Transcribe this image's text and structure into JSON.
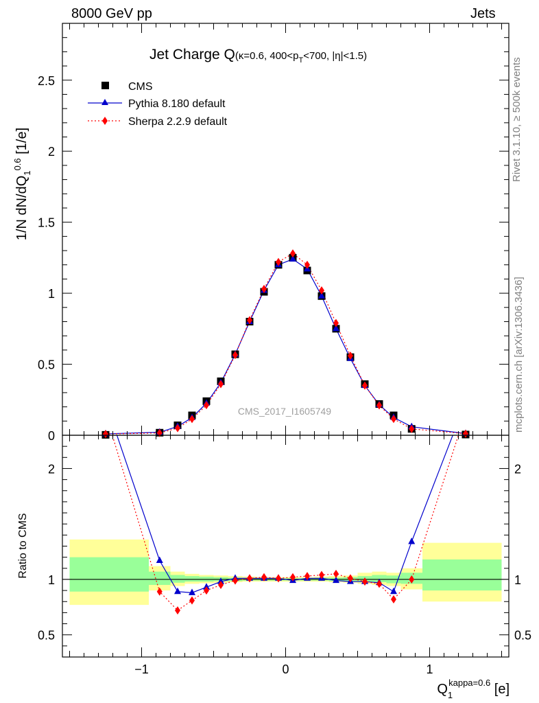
{
  "header": {
    "left": "8000 GeV pp",
    "right": "Jets"
  },
  "side_labels": {
    "rivet": "Rivet 3.1.10, ≥ 500k events",
    "mcplots": "mcplots.cern.ch [arXiv:1306.3436]"
  },
  "watermark": "CMS_2017_I1605749",
  "chart_data": {
    "type": "line",
    "title": "Jet Charge Q",
    "title_sub": "(κ=0.6, 400<p",
    "title_sub_T": "T",
    "title_sub_end": "<700, |η|<1.5)",
    "ylabel_main": "1/N dN/dQ",
    "ylabel_main_sup": "0.6",
    "ylabel_main_sub": "1",
    "ylabel_main_unit": " [1/e]",
    "ylabel_ratio": "Ratio to CMS",
    "xlabel_main": "Q",
    "xlabel_sup": "kappa=0.6",
    "xlabel_sub": "1",
    "xlabel_unit": " [e]",
    "xlim": [
      -1.55,
      1.55
    ],
    "ylim_main": [
      0,
      2.9
    ],
    "ylim_ratio": [
      0.3,
      2.3
    ],
    "xticks": [
      -1,
      0,
      1
    ],
    "xtick_labels": [
      "−1",
      "0",
      "1"
    ],
    "yticks_main": [
      0.5,
      1,
      1.5,
      2,
      2.5
    ],
    "yticks_main_labels": [
      "0.5",
      "1",
      "1.5",
      "2",
      "2.5"
    ],
    "y_zero_label": "0",
    "yticks_ratio": [
      0.5,
      1,
      2
    ],
    "yticks_ratio_labels": [
      "0.5",
      "1",
      "2"
    ],
    "legend_position": "top-left",
    "x": [
      -1.25,
      -0.875,
      -0.75,
      -0.65,
      -0.55,
      -0.45,
      -0.35,
      -0.25,
      -0.15,
      -0.05,
      0.05,
      0.15,
      0.25,
      0.35,
      0.45,
      0.55,
      0.65,
      0.75,
      0.875,
      1.25
    ],
    "series": [
      {
        "name": "CMS",
        "color": "#000000",
        "marker": "square",
        "values": [
          0.003,
          0.018,
          0.07,
          0.14,
          0.24,
          0.38,
          0.57,
          0.8,
          1.01,
          1.2,
          1.25,
          1.16,
          0.98,
          0.75,
          0.55,
          0.36,
          0.22,
          0.14,
          0.045,
          0.005
        ]
      },
      {
        "name": "Pythia 8.180 default",
        "color": "#0000cc",
        "marker": "triangle",
        "dash": "none",
        "values": [
          0.01,
          0.021,
          0.062,
          0.124,
          0.225,
          0.37,
          0.57,
          0.8,
          1.02,
          1.2,
          1.24,
          1.17,
          0.98,
          0.75,
          0.54,
          0.35,
          0.215,
          0.125,
          0.06,
          0.012
        ],
        "ratio": [
          2.6,
          1.17,
          0.89,
          0.88,
          0.93,
          0.98,
          1.01,
          1.01,
          1.01,
          1.01,
          0.99,
          1.01,
          1.01,
          0.99,
          0.98,
          0.98,
          0.97,
          0.89,
          1.34,
          2.6
        ]
      },
      {
        "name": "Sherpa 2.2.9 default",
        "color": "#ff0000",
        "marker": "diamond",
        "dash": "2,3",
        "values": [
          0.009,
          0.016,
          0.05,
          0.114,
          0.212,
          0.36,
          0.565,
          0.81,
          1.03,
          1.22,
          1.28,
          1.2,
          1.02,
          0.79,
          0.56,
          0.35,
          0.21,
          0.115,
          0.045,
          0.011
        ],
        "ratio": [
          2.5,
          0.89,
          0.72,
          0.81,
          0.9,
          0.95,
          0.99,
          1.01,
          1.02,
          1.01,
          1.02,
          1.03,
          1.04,
          1.05,
          1.01,
          0.98,
          0.96,
          0.82,
          1.0,
          2.5
        ]
      }
    ],
    "uncertainty_bands": {
      "colors": {
        "inner": "#99ff99",
        "outer": "#ffff99"
      },
      "bins": [
        {
          "x0": -1.5,
          "x1": -0.95,
          "inner": [
            0.89,
            1.2
          ],
          "outer": [
            0.77,
            1.36
          ]
        },
        {
          "x0": -0.95,
          "x1": -0.8,
          "inner": [
            0.95,
            1.07
          ],
          "outer": [
            0.9,
            1.12
          ]
        },
        {
          "x0": -0.8,
          "x1": -0.7,
          "inner": [
            0.97,
            1.04
          ],
          "outer": [
            0.94,
            1.07
          ]
        },
        {
          "x0": -0.7,
          "x1": -0.6,
          "inner": [
            0.98,
            1.03
          ],
          "outer": [
            0.96,
            1.05
          ]
        },
        {
          "x0": -0.6,
          "x1": -0.5,
          "inner": [
            0.98,
            1.025
          ],
          "outer": [
            0.965,
            1.04
          ]
        },
        {
          "x0": -0.5,
          "x1": -0.4,
          "inner": [
            0.985,
            1.02
          ],
          "outer": [
            0.97,
            1.035
          ]
        },
        {
          "x0": -0.4,
          "x1": -0.3,
          "inner": [
            0.985,
            1.015
          ],
          "outer": [
            0.975,
            1.03
          ]
        },
        {
          "x0": -0.3,
          "x1": -0.2,
          "inner": [
            0.99,
            1.015
          ],
          "outer": [
            0.98,
            1.025
          ]
        },
        {
          "x0": -0.2,
          "x1": -0.1,
          "inner": [
            0.99,
            1.01
          ],
          "outer": [
            0.98,
            1.02
          ]
        },
        {
          "x0": -0.1,
          "x1": 0.0,
          "inner": [
            0.99,
            1.01
          ],
          "outer": [
            0.98,
            1.02
          ]
        },
        {
          "x0": 0.0,
          "x1": 0.1,
          "inner": [
            0.99,
            1.01
          ],
          "outer": [
            0.98,
            1.02
          ]
        },
        {
          "x0": 0.1,
          "x1": 0.2,
          "inner": [
            0.99,
            1.01
          ],
          "outer": [
            0.98,
            1.02
          ]
        },
        {
          "x0": 0.2,
          "x1": 0.3,
          "inner": [
            0.99,
            1.015
          ],
          "outer": [
            0.98,
            1.025
          ]
        },
        {
          "x0": 0.3,
          "x1": 0.4,
          "inner": [
            0.985,
            1.015
          ],
          "outer": [
            0.975,
            1.03
          ]
        },
        {
          "x0": 0.4,
          "x1": 0.5,
          "inner": [
            0.985,
            1.02
          ],
          "outer": [
            0.97,
            1.035
          ]
        },
        {
          "x0": 0.5,
          "x1": 0.6,
          "inner": [
            0.98,
            1.03
          ],
          "outer": [
            0.96,
            1.06
          ]
        },
        {
          "x0": 0.6,
          "x1": 0.7,
          "inner": [
            0.975,
            1.04
          ],
          "outer": [
            0.95,
            1.07
          ]
        },
        {
          "x0": 0.7,
          "x1": 0.8,
          "inner": [
            0.965,
            1.035
          ],
          "outer": [
            0.94,
            1.06
          ]
        },
        {
          "x0": 0.8,
          "x1": 0.95,
          "inner": [
            0.96,
            1.06
          ],
          "outer": [
            0.91,
            1.1
          ]
        },
        {
          "x0": 0.95,
          "x1": 1.5,
          "inner": [
            0.9,
            1.18
          ],
          "outer": [
            0.8,
            1.33
          ]
        }
      ]
    }
  }
}
